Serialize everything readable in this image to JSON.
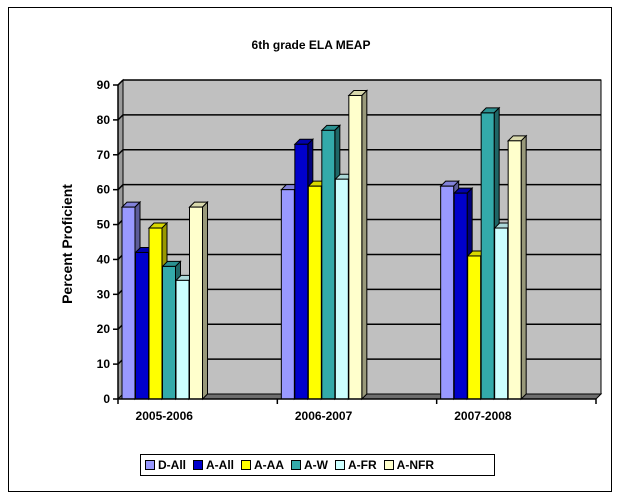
{
  "chart_data": {
    "type": "bar",
    "title": "6th grade ELA MEAP",
    "xlabel": "",
    "ylabel": "Percent Proficient",
    "ylim": [
      0,
      90
    ],
    "yticks": [
      0,
      10,
      20,
      30,
      40,
      50,
      60,
      70,
      80,
      90
    ],
    "grid": true,
    "three_d": true,
    "legend_position": "bottom",
    "plot_background": "#c0c0c0",
    "categories": [
      "2005-2006",
      "2006-2007",
      "2007-2008"
    ],
    "series": [
      {
        "name": "D-All",
        "color": "#9999ff",
        "values": [
          55,
          60,
          61
        ]
      },
      {
        "name": "A-All",
        "color": "#0000cc",
        "values": [
          42,
          73,
          59
        ]
      },
      {
        "name": "A-AA",
        "color": "#ffff00",
        "values": [
          49,
          61,
          41
        ]
      },
      {
        "name": "A-W",
        "color": "#33aaaa",
        "values": [
          38,
          77,
          82
        ]
      },
      {
        "name": "A-FR",
        "color": "#ccffff",
        "values": [
          34,
          63,
          49
        ]
      },
      {
        "name": "A-NFR",
        "color": "#ffffcc",
        "values": [
          55,
          87,
          74
        ]
      }
    ]
  }
}
